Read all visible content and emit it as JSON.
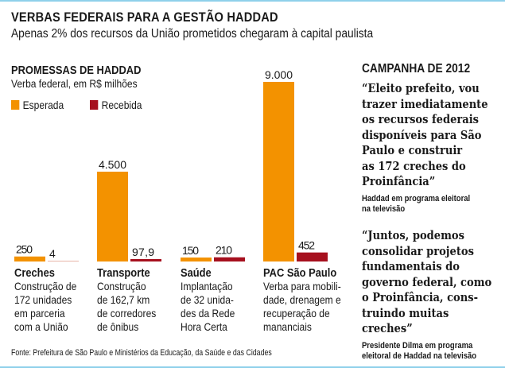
{
  "header": {
    "title": "VERBAS FEDERAIS PARA A GESTÃO HADDAD",
    "subtitle": "Apenas 2% dos recursos da União prometidos chegaram à capital paulista"
  },
  "section": {
    "title": "PROMESSAS DE HADDAD",
    "subtitle": "Verba federal, em R$ milhões"
  },
  "legend": [
    {
      "label": "Esperada",
      "color": "#f39200"
    },
    {
      "label": "Recebida",
      "color": "#a6101e"
    }
  ],
  "chart_data": {
    "type": "bar",
    "title": "PROMESSAS DE HADDAD",
    "subtitle": "Verba federal, em R$ milhões",
    "categories": [
      "Creches",
      "Transporte",
      "Saúde",
      "PAC São Paulo"
    ],
    "series": [
      {
        "name": "Esperada",
        "color": "#f39200",
        "values": [
          250,
          4500,
          150,
          9000
        ],
        "labels": [
          "250",
          "4.500",
          "150",
          "9.000"
        ]
      },
      {
        "name": "Recebida",
        "color": "#a6101e",
        "values": [
          4,
          97.9,
          210,
          452
        ],
        "labels": [
          "4",
          "97,9",
          "210",
          "452"
        ]
      }
    ],
    "ylim": [
      0,
      9000
    ],
    "grid": false,
    "legend_position": "top-left"
  },
  "categories": [
    {
      "name": "Creches",
      "desc": "Construção de\n172 unidades\nem parceria\ncom a União"
    },
    {
      "name": "Transporte",
      "desc": "Construção\nde 162,7 km\nde corredores\nde ônibus"
    },
    {
      "name": "Saúde",
      "desc": "Implantação\nde 32 unida-\ndes da Rede\nHora Certa"
    },
    {
      "name": "PAC São Paulo",
      "desc": "Verba para mobili-\ndade, drenagem e\nrecuperação de\nmananciais"
    }
  ],
  "source": "Fonte: Prefeitura de São Paulo e Ministérios da Educação, da Saúde e das Cidades",
  "campaign": {
    "title": "CAMPANHA DE 2012",
    "quotes": [
      {
        "text": "“Eleito prefeito, vou\ntrazer imediatamente\nos recursos federais\ndisponíveis para São\nPaulo e construir\nas 172 creches do\nProinfância”",
        "attribution": "Haddad em programa eleitoral\nna televisão"
      },
      {
        "text": "“Juntos, podemos\nconsolidar projetos\nfundamentais do\ngoverno federal, como\no Proinfância, cons-\ntruindo muitas\ncreches”",
        "attribution": "Presidente Dilma em programa\neleitoral de Haddad na televisão"
      }
    ]
  }
}
